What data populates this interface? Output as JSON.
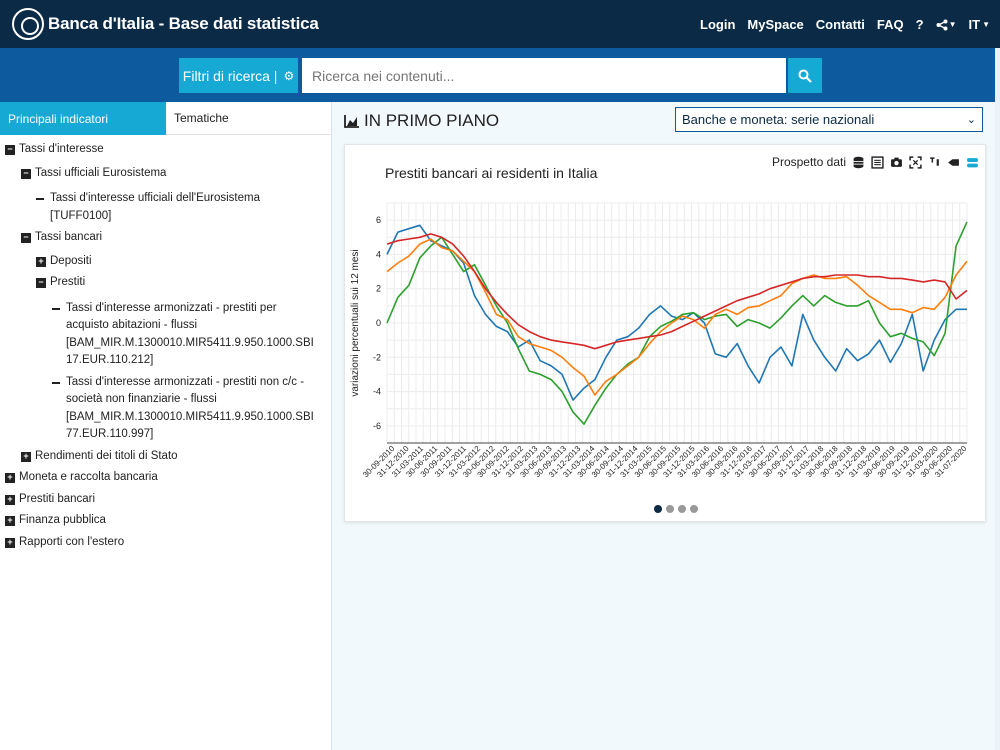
{
  "header": {
    "brand": "Banca d'Italia - Base dati statistica",
    "nav": [
      "Login",
      "MySpace",
      "Contatti",
      "FAQ",
      "?"
    ],
    "share_icon": "share-icon",
    "lang": "IT"
  },
  "search": {
    "filter_label": "Filtri di ricerca |",
    "placeholder": "Ricerca nei contenuti..."
  },
  "sidebar": {
    "tab_active": "Principali indicatori",
    "tab_other": "Tematiche",
    "tree": [
      {
        "label": "Tassi d'interesse",
        "level": 0,
        "state": "open"
      },
      {
        "label": "Tassi ufficiali Eurosistema",
        "level": 1,
        "state": "open"
      },
      {
        "label": "Tassi d'interesse ufficiali dell'Eurosistema",
        "label2": "[TUFF0100]",
        "level": 2,
        "state": "leaf"
      },
      {
        "label": "Tassi bancari",
        "level": 1,
        "state": "open"
      },
      {
        "label": "Depositi",
        "level": 2,
        "state": "closed"
      },
      {
        "label": "Prestiti",
        "level": 2,
        "state": "open"
      },
      {
        "label": "Tassi d'interesse armonizzati - prestiti per",
        "label2": "acquisto abitazioni - flussi",
        "label3": "[BAM_MIR.M.1300010.MIR5411.9.950.1000.SBI",
        "label4": "17.EUR.110.212]",
        "level": 3,
        "state": "leaf"
      },
      {
        "label": "Tassi d'interesse armonizzati - prestiti non c/c -",
        "label2": "società non finanziarie - flussi",
        "label3": "[BAM_MIR.M.1300010.MIR5411.9.950.1000.SBI",
        "label4": "77.EUR.110.997]",
        "level": 3,
        "state": "leaf"
      },
      {
        "label": "Rendimenti dei titoli di Stato",
        "level": 1,
        "state": "closed"
      },
      {
        "label": "Moneta e raccolta bancaria",
        "level": 0,
        "state": "closed"
      },
      {
        "label": "Prestiti bancari",
        "level": 0,
        "state": "closed"
      },
      {
        "label": "Finanza pubblica",
        "level": 0,
        "state": "closed"
      },
      {
        "label": "Rapporti con l'estero",
        "level": 0,
        "state": "closed"
      }
    ]
  },
  "main": {
    "section_title": "IN PRIMO PIANO",
    "select_value": "Banche e moneta: serie nazionali",
    "card": {
      "toolbar_label": "Prospetto dati",
      "carousel_count": 4
    }
  },
  "chart_data": {
    "type": "line",
    "title": "Prestiti bancari ai residenti in Italia",
    "xlabel": "",
    "ylabel": "variazioni percentuali sui 12 mesi",
    "ylim": [
      -7,
      7
    ],
    "yticks": [
      6,
      4,
      2,
      0,
      -2,
      -4,
      -6
    ],
    "grid": true,
    "x_tick_labels": [
      "30-09-2010",
      "31-12-2010",
      "31-03-2011",
      "30-06-2011",
      "30-09-2011",
      "31-12-2011",
      "31-03-2012",
      "30-06-2012",
      "30-09-2012",
      "31-12-2012",
      "31-03-2013",
      "30-06-2013",
      "30-09-2013",
      "31-12-2013",
      "31-03-2014",
      "30-06-2014",
      "30-09-2014",
      "31-12-2014",
      "31-03-2015",
      "30-06-2015",
      "30-09-2015",
      "31-12-2015",
      "31-03-2016",
      "30-06-2016",
      "30-09-2016",
      "31-12-2016",
      "31-03-2017",
      "30-06-2017",
      "30-09-2017",
      "31-12-2017",
      "31-03-2018",
      "30-06-2018",
      "30-09-2018",
      "31-12-2018",
      "31-03-2019",
      "30-06-2019",
      "30-09-2019",
      "31-12-2019",
      "31-03-2020",
      "30-06-2020",
      "31-07-2020"
    ],
    "colors": [
      "#d62728",
      "#ff7f0e",
      "#2ca02c",
      "#1f77b4"
    ],
    "series": [
      {
        "values": [
          4.6,
          4.8,
          4.9,
          5.0,
          5.2,
          5.0,
          4.6,
          3.9,
          3.0,
          2.0,
          1.2,
          0.5,
          -0.1,
          -0.5,
          -0.8,
          -1.0,
          -1.1,
          -1.2,
          -1.3,
          -1.5,
          -1.3,
          -1.1,
          -1.0,
          -0.9,
          -0.8,
          -0.7,
          -0.5,
          -0.2,
          0.1,
          0.4,
          0.7,
          1.0,
          1.3,
          1.5,
          1.7,
          2.0,
          2.2,
          2.4,
          2.6,
          2.7,
          2.7,
          2.8,
          2.8,
          2.8,
          2.7,
          2.7,
          2.6,
          2.6,
          2.5,
          2.4,
          2.5,
          2.4,
          1.4,
          1.9
        ]
      },
      {
        "values": [
          3.0,
          3.5,
          3.9,
          4.6,
          4.9,
          4.4,
          4.2,
          3.6,
          3.0,
          1.8,
          0.5,
          0.2,
          -0.8,
          -1.2,
          -1.4,
          -1.6,
          -2.0,
          -2.6,
          -3.1,
          -4.2,
          -3.4,
          -3.0,
          -2.5,
          -2.0,
          -1.2,
          -0.5,
          0.0,
          0.4,
          0.2,
          -0.3,
          0.5,
          0.8,
          0.5,
          0.9,
          1.0,
          1.3,
          1.6,
          2.3,
          2.6,
          2.8,
          2.6,
          2.6,
          2.7,
          2.2,
          1.6,
          1.2,
          0.8,
          0.8,
          0.6,
          0.9,
          0.8,
          1.5,
          2.8,
          3.6
        ]
      },
      {
        "values": [
          0.0,
          1.5,
          2.2,
          3.8,
          4.5,
          5.0,
          4.0,
          3.0,
          3.4,
          2.2,
          1.0,
          0.0,
          -1.5,
          -2.8,
          -3.0,
          -3.3,
          -4.0,
          -5.2,
          -5.9,
          -4.8,
          -3.8,
          -3.0,
          -2.4,
          -2.0,
          -0.8,
          -0.2,
          0.1,
          0.5,
          0.6,
          0.2,
          0.4,
          0.5,
          -0.2,
          0.2,
          0.0,
          -0.3,
          0.3,
          1.0,
          1.6,
          1.0,
          1.6,
          1.2,
          1.0,
          1.0,
          1.3,
          0.0,
          -0.8,
          -0.6,
          -0.9,
          -1.1,
          -1.9,
          -0.6,
          4.5,
          5.9
        ]
      },
      {
        "values": [
          4.0,
          5.3,
          5.5,
          5.7,
          4.8,
          4.5,
          4.2,
          3.5,
          1.6,
          0.5,
          -0.2,
          -0.5,
          -1.4,
          -1.0,
          -2.2,
          -2.5,
          -3.0,
          -4.5,
          -3.8,
          -3.3,
          -2.0,
          -1.0,
          -0.8,
          -0.3,
          0.5,
          1.0,
          0.4,
          0.2,
          0.6,
          0.0,
          -1.8,
          -2.0,
          -1.2,
          -2.5,
          -3.5,
          -2.0,
          -1.4,
          -2.5,
          0.5,
          -1.0,
          -2.0,
          -2.8,
          -1.5,
          -2.2,
          -1.8,
          -1.0,
          -2.3,
          -1.2,
          0.5,
          -2.8,
          -1.0,
          0.2,
          0.8,
          0.8
        ]
      }
    ]
  }
}
